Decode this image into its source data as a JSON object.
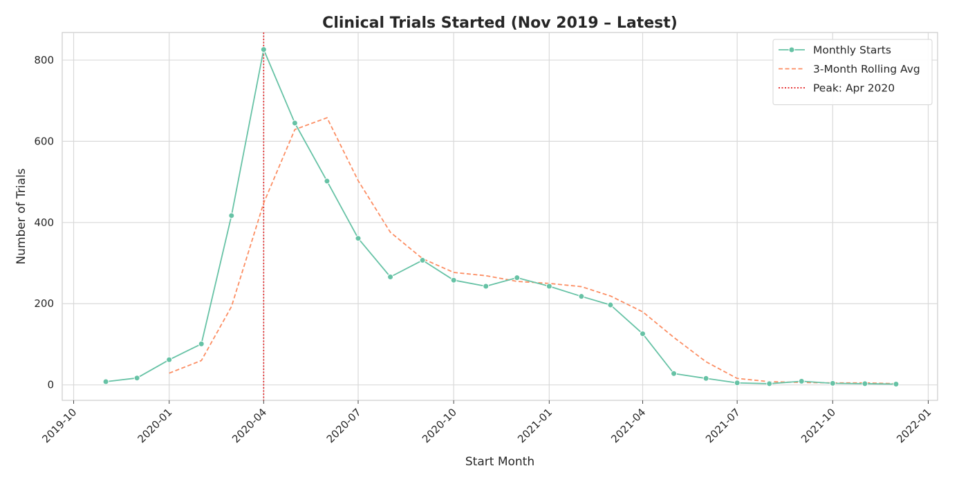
{
  "chart_data": {
    "type": "line",
    "title": "Clinical Trials Started (Nov 2019 – Latest)",
    "xlabel": "Start Month",
    "ylabel": "Number of Trials",
    "x_range": [
      "2019-09-20",
      "2022-01-10"
    ],
    "ylim": [
      -38,
      868
    ],
    "grid": true,
    "legend_position": "top-right",
    "x_ticks": [
      "2019-10",
      "2020-01",
      "2020-04",
      "2020-07",
      "2020-10",
      "2021-01",
      "2021-04",
      "2021-07",
      "2021-10",
      "2022-01"
    ],
    "y_ticks": [
      0,
      200,
      400,
      600,
      800
    ],
    "x": [
      "2019-11",
      "2019-12",
      "2020-01",
      "2020-02",
      "2020-03",
      "2020-04",
      "2020-05",
      "2020-06",
      "2020-07",
      "2020-08",
      "2020-09",
      "2020-10",
      "2020-11",
      "2020-12",
      "2021-01",
      "2021-02",
      "2021-03",
      "2021-04",
      "2021-05",
      "2021-06",
      "2021-07",
      "2021-08",
      "2021-09",
      "2021-10",
      "2021-11",
      "2021-12"
    ],
    "series": [
      {
        "name": "Monthly Starts",
        "style": "solid",
        "marker": "circle",
        "color": "#66c2a5",
        "values": [
          8,
          17,
          62,
          101,
          417,
          826,
          645,
          502,
          361,
          266,
          307,
          258,
          243,
          264,
          243,
          218,
          197,
          126,
          28,
          16,
          5,
          3,
          9,
          4,
          3,
          2
        ]
      },
      {
        "name": "3-Month Rolling Avg",
        "style": "dashed",
        "marker": null,
        "color": "#fc8d62",
        "values": [
          null,
          null,
          29,
          60,
          193,
          448,
          629,
          658,
          503,
          376,
          311,
          277,
          269,
          255,
          250,
          242,
          219,
          180,
          117,
          57,
          16,
          8,
          6,
          5,
          5,
          3
        ]
      }
    ],
    "vline": {
      "name": "Peak: Apr 2020",
      "x": "2020-04",
      "style": "dotted",
      "color": "#e31a1c"
    }
  }
}
